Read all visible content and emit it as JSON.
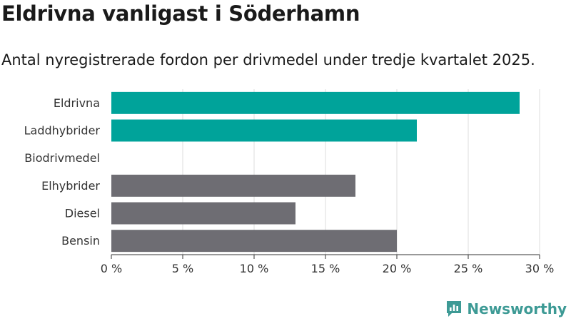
{
  "title": "Eldrivna vanligast i Söderhamn",
  "subtitle": "Antal nyregistrerade fordon per drivmedel under tredje kvartalet 2025.",
  "brand": {
    "name": "Newsworthy",
    "icon": "newsworthy-logo-icon",
    "color": "#3d9a95"
  },
  "chart_data": {
    "type": "bar",
    "orientation": "horizontal",
    "title": "Eldrivna vanligast i Söderhamn",
    "subtitle": "Antal nyregistrerade fordon per drivmedel under tredje kvartalet 2025.",
    "xlabel": "",
    "ylabel": "",
    "categories": [
      "Eldrivna",
      "Laddhybrider",
      "Biodrivmedel",
      "Elhybrider",
      "Diesel",
      "Bensin"
    ],
    "values": [
      28.6,
      21.4,
      0,
      17.1,
      12.9,
      20.0
    ],
    "colors": [
      "#00a39a",
      "#00a39a",
      "#00a39a",
      "#6e6d73",
      "#6e6d73",
      "#6e6d73"
    ],
    "xlim": [
      0,
      30
    ],
    "xticks": [
      0,
      5,
      10,
      15,
      20,
      25,
      30
    ],
    "xtick_labels": [
      "0 %",
      "5 %",
      "10 %",
      "15 %",
      "20 %",
      "25 %",
      "30 %"
    ],
    "grid": true,
    "legend": "none"
  }
}
